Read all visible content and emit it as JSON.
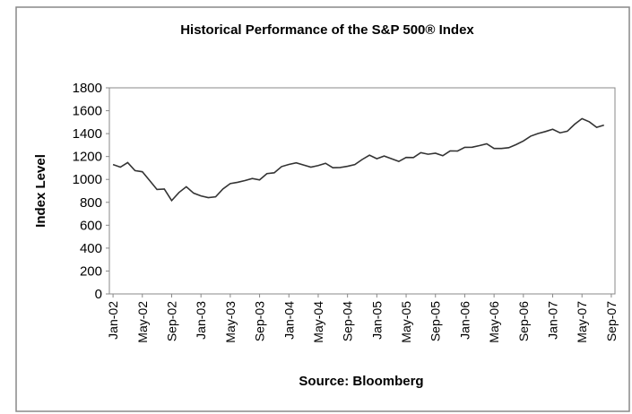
{
  "chart_data": {
    "type": "line",
    "title": "Historical Performance of the S&P 500® Index",
    "x_label": "Source: Bloomberg",
    "y_label": "Index Level",
    "categories": [
      "Jan-02",
      null,
      null,
      null,
      "May-02",
      null,
      null,
      null,
      "Sep-02",
      null,
      null,
      null,
      "Jan-03",
      null,
      null,
      null,
      "May-03",
      null,
      null,
      null,
      "Sep-03",
      null,
      null,
      null,
      "Jan-04",
      null,
      null,
      null,
      "May-04",
      null,
      null,
      null,
      "Sep-04",
      null,
      null,
      null,
      "Jan-05",
      null,
      null,
      null,
      "May-05",
      null,
      null,
      null,
      "Sep-05",
      null,
      null,
      null,
      "Jan-06",
      null,
      null,
      null,
      "May-06",
      null,
      null,
      null,
      "Sep-06",
      null,
      null,
      null,
      "Jan-07",
      null,
      null,
      null,
      "May-07",
      null,
      null,
      null,
      "Sep-07"
    ],
    "series": [
      {
        "name": "S&P 500",
        "color": "#333333",
        "values": [
          1130,
          1107,
          1147,
          1077,
          1067,
          990,
          912,
          916,
          815,
          886,
          936,
          880,
          856,
          841,
          848,
          917,
          964,
          975,
          990,
          1008,
          996,
          1051,
          1058,
          1112,
          1131,
          1145,
          1126,
          1107,
          1121,
          1141,
          1102,
          1104,
          1115,
          1130,
          1174,
          1212,
          1181,
          1204,
          1181,
          1157,
          1192,
          1191,
          1234,
          1220,
          1229,
          1207,
          1249,
          1248,
          1280,
          1281,
          1295,
          1311,
          1270,
          1270,
          1277,
          1304,
          1336,
          1378,
          1401,
          1418,
          1438,
          1407,
          1421,
          1482,
          1531,
          1503,
          1455,
          1474,
          null
        ]
      }
    ],
    "ylim": [
      0,
      1800
    ],
    "yticks": [
      0,
      200,
      400,
      600,
      800,
      1000,
      1200,
      1400,
      1600,
      1800
    ],
    "grid": false
  }
}
